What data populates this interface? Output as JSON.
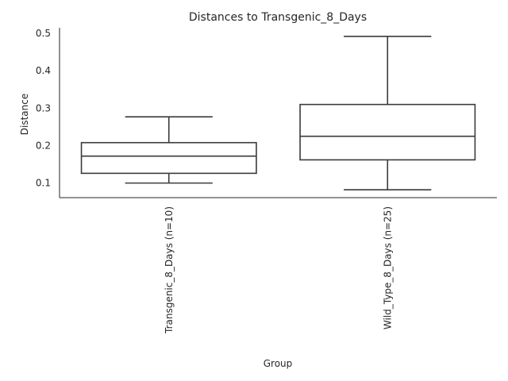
{
  "chart_data": {
    "type": "box",
    "title": "Distances to Transgenic_8_Days",
    "xlabel": "Group",
    "ylabel": "Distance",
    "ylim": [
      0.061,
      0.515
    ],
    "yticks": [
      "0.1",
      "0.2",
      "0.3",
      "0.4",
      "0.5"
    ],
    "ytick_values": [
      0.1,
      0.2,
      0.3,
      0.4,
      0.5
    ],
    "grid": false,
    "categories": [
      "Transgenic_8_Days (n=10)",
      "Wild_Type_8_Days (n=25)"
    ],
    "boxes": [
      {
        "whisker_low": 0.1,
        "q1": 0.126,
        "median": 0.172,
        "q3": 0.208,
        "whisker_high": 0.277
      },
      {
        "whisker_low": 0.082,
        "q1": 0.162,
        "median": 0.225,
        "q3": 0.31,
        "whisker_high": 0.492
      }
    ]
  }
}
